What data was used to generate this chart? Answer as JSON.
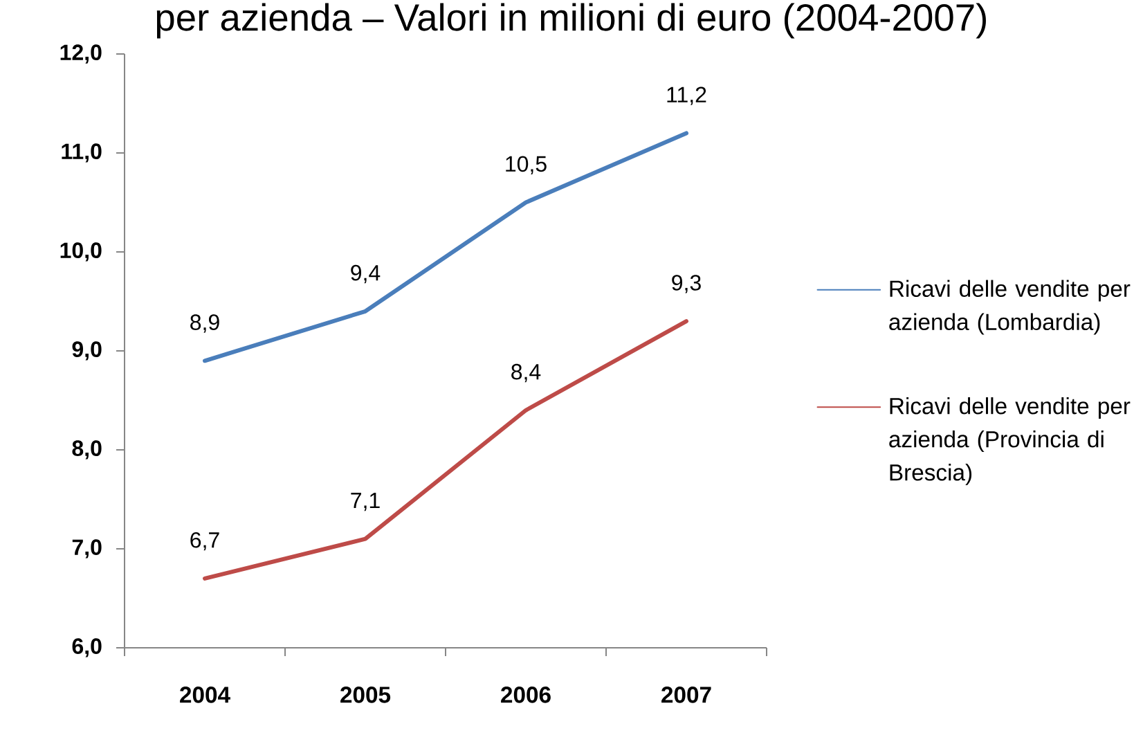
{
  "chart_data": {
    "type": "line",
    "title": "per azienda – Valori in milioni di euro (2004-2007)",
    "categories": [
      "2004",
      "2005",
      "2006",
      "2007"
    ],
    "series": [
      {
        "name": "Ricavi delle vendite per azienda (Lombardia)",
        "color": "#4a7ebb",
        "values": [
          8.9,
          9.4,
          10.5,
          11.2
        ],
        "value_labels": [
          "8,9",
          "9,4",
          "10,5",
          "11,2"
        ]
      },
      {
        "name": "Ricavi delle vendite per azienda (Provincia di Brescia)",
        "color": "#be4b48",
        "values": [
          6.7,
          7.1,
          8.4,
          9.3
        ],
        "value_labels": [
          "6,7",
          "7,1",
          "8,4",
          "9,3"
        ]
      }
    ],
    "ylim": [
      6,
      12
    ],
    "yticks": [
      {
        "value": 6,
        "label": "6,0"
      },
      {
        "value": 7,
        "label": "7,0"
      },
      {
        "value": 8,
        "label": "8,0"
      },
      {
        "value": 9,
        "label": "9,0"
      },
      {
        "value": 10,
        "label": "10,0"
      },
      {
        "value": 11,
        "label": "11,0"
      },
      {
        "value": 12,
        "label": "12,0"
      }
    ],
    "legend": "right"
  }
}
